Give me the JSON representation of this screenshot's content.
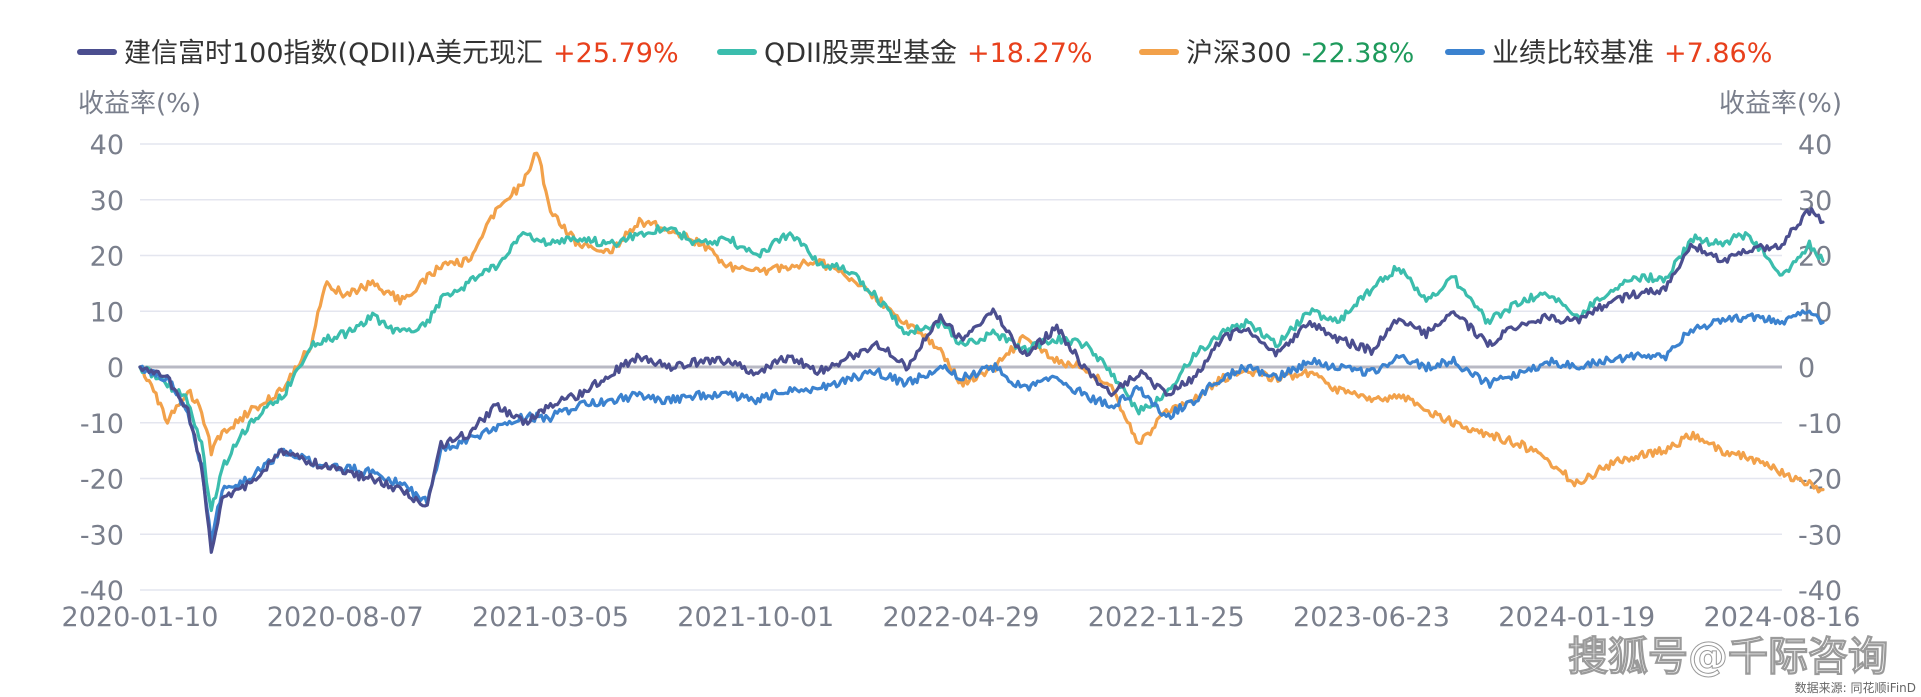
{
  "chart_data": {
    "type": "line",
    "ylabel_left": "收益率(%)",
    "ylabel_right": "收益率(%)",
    "ylim": [
      -40,
      40
    ],
    "yticks": [
      "40",
      "30",
      "20",
      "10",
      "0",
      "-10",
      "-20",
      "-30",
      "-40"
    ],
    "xticks": [
      "2020-01-10",
      "2020-08-07",
      "2021-03-05",
      "2021-10-01",
      "2022-04-29",
      "2022-11-25",
      "2023-06-23",
      "2024-01-19",
      "2024-08-16"
    ],
    "legend_position": "top",
    "grid": true,
    "series": [
      {
        "name": "建信富时100指数(QDII)A美元现汇",
        "value_label": "+25.79%",
        "value_color": "#e8401c",
        "color": "#4b4e8f",
        "points": [
          [
            "2020-01-10",
            0
          ],
          [
            "2020-02-07",
            -2
          ],
          [
            "2020-02-28",
            -8
          ],
          [
            "2020-03-13",
            -18
          ],
          [
            "2020-03-23",
            -33
          ],
          [
            "2020-04-03",
            -24
          ],
          [
            "2020-05-01",
            -21
          ],
          [
            "2020-06-05",
            -15
          ],
          [
            "2020-07-03",
            -17
          ],
          [
            "2020-08-07",
            -19
          ],
          [
            "2020-09-04",
            -20
          ],
          [
            "2020-10-02",
            -22
          ],
          [
            "2020-10-30",
            -25
          ],
          [
            "2020-11-13",
            -14
          ],
          [
            "2020-12-11",
            -12
          ],
          [
            "2021-01-08",
            -7
          ],
          [
            "2021-02-05",
            -10
          ],
          [
            "2021-03-05",
            -7
          ],
          [
            "2021-04-02",
            -5
          ],
          [
            "2021-05-07",
            -1
          ],
          [
            "2021-06-04",
            2
          ],
          [
            "2021-07-02",
            0
          ],
          [
            "2021-08-06",
            1
          ],
          [
            "2021-09-03",
            1
          ],
          [
            "2021-10-01",
            -1
          ],
          [
            "2021-11-05",
            2
          ],
          [
            "2021-12-03",
            -1
          ],
          [
            "2022-01-07",
            2
          ],
          [
            "2022-02-04",
            4
          ],
          [
            "2022-03-04",
            0
          ],
          [
            "2022-04-08",
            9
          ],
          [
            "2022-04-29",
            5
          ],
          [
            "2022-06-03",
            10
          ],
          [
            "2022-07-01",
            2
          ],
          [
            "2022-08-05",
            7
          ],
          [
            "2022-09-02",
            0
          ],
          [
            "2022-09-30",
            -5
          ],
          [
            "2022-10-28",
            -1
          ],
          [
            "2022-11-25",
            -5
          ],
          [
            "2022-12-23",
            -2
          ],
          [
            "2023-01-20",
            5
          ],
          [
            "2023-02-17",
            7
          ],
          [
            "2023-03-17",
            2
          ],
          [
            "2023-04-21",
            8
          ],
          [
            "2023-05-19",
            5
          ],
          [
            "2023-06-23",
            3
          ],
          [
            "2023-07-21",
            9
          ],
          [
            "2023-08-18",
            6
          ],
          [
            "2023-09-15",
            10
          ],
          [
            "2023-10-20",
            4
          ],
          [
            "2023-11-24",
            8
          ],
          [
            "2023-12-22",
            9
          ],
          [
            "2024-01-19",
            8
          ],
          [
            "2024-02-16",
            11
          ],
          [
            "2024-03-15",
            13
          ],
          [
            "2024-04-19",
            14
          ],
          [
            "2024-05-17",
            22
          ],
          [
            "2024-06-14",
            19
          ],
          [
            "2024-07-12",
            21
          ],
          [
            "2024-08-16",
            22
          ],
          [
            "2024-09-13",
            28
          ],
          [
            "2024-09-27",
            26
          ]
        ]
      },
      {
        "name": "QDII股票型基金",
        "value_label": "+18.27%",
        "value_color": "#e8401c",
        "color": "#3bbdad",
        "points": [
          [
            "2020-01-10",
            0
          ],
          [
            "2020-02-07",
            -3
          ],
          [
            "2020-02-28",
            -6
          ],
          [
            "2020-03-13",
            -14
          ],
          [
            "2020-03-23",
            -26
          ],
          [
            "2020-04-03",
            -18
          ],
          [
            "2020-05-01",
            -10
          ],
          [
            "2020-06-05",
            -5
          ],
          [
            "2020-07-03",
            4
          ],
          [
            "2020-08-07",
            6
          ],
          [
            "2020-09-04",
            9
          ],
          [
            "2020-10-02",
            6
          ],
          [
            "2020-10-30",
            8
          ],
          [
            "2020-11-13",
            12
          ],
          [
            "2020-12-11",
            15
          ],
          [
            "2021-01-08",
            18
          ],
          [
            "2021-02-05",
            24
          ],
          [
            "2021-03-05",
            22
          ],
          [
            "2021-04-02",
            23
          ],
          [
            "2021-05-07",
            22
          ],
          [
            "2021-06-04",
            24
          ],
          [
            "2021-07-02",
            25
          ],
          [
            "2021-08-06",
            22
          ],
          [
            "2021-09-03",
            23
          ],
          [
            "2021-10-01",
            20
          ],
          [
            "2021-11-05",
            24
          ],
          [
            "2021-12-03",
            19
          ],
          [
            "2022-01-07",
            17
          ],
          [
            "2022-02-04",
            12
          ],
          [
            "2022-03-04",
            6
          ],
          [
            "2022-04-08",
            8
          ],
          [
            "2022-04-29",
            4
          ],
          [
            "2022-06-03",
            6
          ],
          [
            "2022-07-01",
            3
          ],
          [
            "2022-08-05",
            5
          ],
          [
            "2022-09-02",
            4
          ],
          [
            "2022-09-30",
            -1
          ],
          [
            "2022-10-28",
            -8
          ],
          [
            "2022-11-25",
            -5
          ],
          [
            "2022-12-23",
            2
          ],
          [
            "2023-01-20",
            6
          ],
          [
            "2023-02-17",
            8
          ],
          [
            "2023-03-17",
            4
          ],
          [
            "2023-04-21",
            10
          ],
          [
            "2023-05-19",
            8
          ],
          [
            "2023-06-23",
            14
          ],
          [
            "2023-07-21",
            18
          ],
          [
            "2023-08-18",
            12
          ],
          [
            "2023-09-15",
            16
          ],
          [
            "2023-10-20",
            8
          ],
          [
            "2023-11-24",
            12
          ],
          [
            "2023-12-22",
            13
          ],
          [
            "2024-01-19",
            9
          ],
          [
            "2024-02-16",
            13
          ],
          [
            "2024-03-15",
            16
          ],
          [
            "2024-04-19",
            16
          ],
          [
            "2024-05-17",
            23
          ],
          [
            "2024-06-14",
            22
          ],
          [
            "2024-07-12",
            24
          ],
          [
            "2024-08-16",
            16
          ],
          [
            "2024-09-13",
            22
          ],
          [
            "2024-09-27",
            19
          ]
        ]
      },
      {
        "name": "沪深300",
        "value_label": "-22.38%",
        "value_color": "#1e9a5c",
        "color": "#f2a14a",
        "points": [
          [
            "2020-01-10",
            0
          ],
          [
            "2020-01-24",
            -4
          ],
          [
            "2020-02-07",
            -10
          ],
          [
            "2020-02-28",
            -4
          ],
          [
            "2020-03-13",
            -8
          ],
          [
            "2020-03-23",
            -15
          ],
          [
            "2020-04-03",
            -12
          ],
          [
            "2020-05-01",
            -8
          ],
          [
            "2020-06-05",
            -4
          ],
          [
            "2020-07-03",
            4
          ],
          [
            "2020-07-17",
            15
          ],
          [
            "2020-08-07",
            13
          ],
          [
            "2020-09-04",
            15
          ],
          [
            "2020-10-02",
            12
          ],
          [
            "2020-10-30",
            16
          ],
          [
            "2020-11-13",
            18
          ],
          [
            "2020-12-11",
            19
          ],
          [
            "2021-01-08",
            28
          ],
          [
            "2021-02-05",
            33
          ],
          [
            "2021-02-19",
            39
          ],
          [
            "2021-03-05",
            28
          ],
          [
            "2021-04-02",
            22
          ],
          [
            "2021-05-07",
            21
          ],
          [
            "2021-06-04",
            26
          ],
          [
            "2021-07-02",
            25
          ],
          [
            "2021-08-06",
            22
          ],
          [
            "2021-09-03",
            18
          ],
          [
            "2021-10-01",
            17
          ],
          [
            "2021-11-05",
            18
          ],
          [
            "2021-12-03",
            19
          ],
          [
            "2022-01-07",
            16
          ],
          [
            "2022-02-04",
            12
          ],
          [
            "2022-03-04",
            8
          ],
          [
            "2022-04-08",
            3
          ],
          [
            "2022-04-29",
            -3
          ],
          [
            "2022-06-03",
            0
          ],
          [
            "2022-07-01",
            5
          ],
          [
            "2022-08-05",
            1
          ],
          [
            "2022-09-02",
            0
          ],
          [
            "2022-09-30",
            -4
          ],
          [
            "2022-10-28",
            -14
          ],
          [
            "2022-11-25",
            -8
          ],
          [
            "2022-12-23",
            -6
          ],
          [
            "2023-01-20",
            -2
          ],
          [
            "2023-02-17",
            -1
          ],
          [
            "2023-03-17",
            -2
          ],
          [
            "2023-04-21",
            -1
          ],
          [
            "2023-05-19",
            -4
          ],
          [
            "2023-06-23",
            -6
          ],
          [
            "2023-07-21",
            -5
          ],
          [
            "2023-08-18",
            -8
          ],
          [
            "2023-09-15",
            -10
          ],
          [
            "2023-10-20",
            -12
          ],
          [
            "2023-11-24",
            -14
          ],
          [
            "2023-12-22",
            -17
          ],
          [
            "2024-01-19",
            -21
          ],
          [
            "2024-02-16",
            -18
          ],
          [
            "2024-03-15",
            -16
          ],
          [
            "2024-04-19",
            -15
          ],
          [
            "2024-05-17",
            -12
          ],
          [
            "2024-06-14",
            -15
          ],
          [
            "2024-07-12",
            -16
          ],
          [
            "2024-08-16",
            -19
          ],
          [
            "2024-09-13",
            -21
          ],
          [
            "2024-09-27",
            -22
          ]
        ]
      },
      {
        "name": "业绩比较基准",
        "value_label": "+7.86%",
        "value_color": "#e8401c",
        "color": "#3b82cf",
        "points": [
          [
            "2020-01-10",
            0
          ],
          [
            "2020-02-07",
            -2
          ],
          [
            "2020-02-28",
            -8
          ],
          [
            "2020-03-13",
            -18
          ],
          [
            "2020-03-23",
            -31
          ],
          [
            "2020-04-03",
            -22
          ],
          [
            "2020-05-01",
            -20
          ],
          [
            "2020-06-05",
            -15
          ],
          [
            "2020-07-03",
            -17
          ],
          [
            "2020-08-07",
            -18
          ],
          [
            "2020-09-04",
            -19
          ],
          [
            "2020-10-02",
            -21
          ],
          [
            "2020-10-30",
            -24
          ],
          [
            "2020-11-13",
            -15
          ],
          [
            "2020-12-11",
            -13
          ],
          [
            "2021-01-08",
            -11
          ],
          [
            "2021-02-05",
            -9
          ],
          [
            "2021-03-05",
            -9
          ],
          [
            "2021-04-02",
            -7
          ],
          [
            "2021-05-07",
            -6
          ],
          [
            "2021-06-04",
            -5
          ],
          [
            "2021-07-02",
            -6
          ],
          [
            "2021-08-06",
            -5
          ],
          [
            "2021-09-03",
            -5
          ],
          [
            "2021-10-01",
            -6
          ],
          [
            "2021-11-05",
            -4
          ],
          [
            "2021-12-03",
            -4
          ],
          [
            "2022-01-07",
            -2
          ],
          [
            "2022-02-04",
            -1
          ],
          [
            "2022-03-04",
            -3
          ],
          [
            "2022-04-08",
            0
          ],
          [
            "2022-04-29",
            -2
          ],
          [
            "2022-06-03",
            0
          ],
          [
            "2022-07-01",
            -4
          ],
          [
            "2022-08-05",
            -2
          ],
          [
            "2022-09-02",
            -5
          ],
          [
            "2022-09-30",
            -7
          ],
          [
            "2022-10-28",
            -4
          ],
          [
            "2022-11-25",
            -9
          ],
          [
            "2022-12-23",
            -6
          ],
          [
            "2023-01-20",
            -2
          ],
          [
            "2023-02-17",
            0
          ],
          [
            "2023-03-17",
            -2
          ],
          [
            "2023-04-21",
            1
          ],
          [
            "2023-05-19",
            0
          ],
          [
            "2023-06-23",
            -1
          ],
          [
            "2023-07-21",
            2
          ],
          [
            "2023-08-18",
            0
          ],
          [
            "2023-09-15",
            1
          ],
          [
            "2023-10-20",
            -3
          ],
          [
            "2023-11-24",
            -1
          ],
          [
            "2023-12-22",
            1
          ],
          [
            "2024-01-19",
            0
          ],
          [
            "2024-02-16",
            1
          ],
          [
            "2024-03-15",
            2
          ],
          [
            "2024-04-19",
            2
          ],
          [
            "2024-05-17",
            7
          ],
          [
            "2024-06-14",
            8
          ],
          [
            "2024-07-12",
            9
          ],
          [
            "2024-08-16",
            8
          ],
          [
            "2024-09-13",
            10
          ],
          [
            "2024-09-27",
            8
          ]
        ]
      }
    ]
  },
  "watermark": "搜狐号@千际咨询",
  "source": "数据来源: 同花顺iFinD"
}
